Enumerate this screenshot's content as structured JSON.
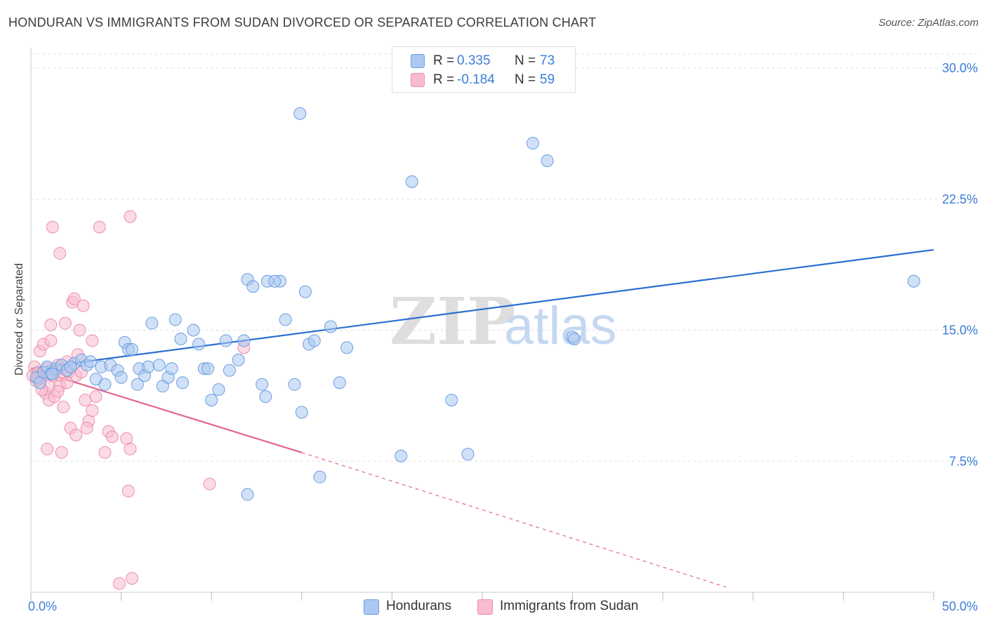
{
  "title": "HONDURAN VS IMMIGRANTS FROM SUDAN DIVORCED OR SEPARATED CORRELATION CHART",
  "source": "Source: ZipAtlas.com",
  "watermark": {
    "zip": "ZIP",
    "atlas": "atlas"
  },
  "colors": {
    "blue_fill": "#aac8f0",
    "blue_stroke": "#6b9de0",
    "blue_line": "#2b6fd0",
    "pink_fill": "#f7bccd",
    "pink_stroke": "#ec8fab",
    "pink_line": "#e2658e",
    "tick_text": "#3b7dd8",
    "grid": "#e0e0e0"
  },
  "legend_top": {
    "rows": [
      {
        "r_label": "R =",
        "r_value": "0.335",
        "n_label": "N =",
        "n_value": "73"
      },
      {
        "r_label": "R =",
        "r_value": "-0.184",
        "n_label": "N =",
        "n_value": "59"
      }
    ]
  },
  "legend_bottom": {
    "items": [
      "Hondurans",
      "Immigrants from Sudan"
    ]
  },
  "chart_data": {
    "type": "scatter",
    "title": "HONDURAN VS IMMIGRANTS FROM SUDAN DIVORCED OR SEPARATED CORRELATION CHART",
    "xlabel": "",
    "ylabel": "Divorced or Separated",
    "xlim": [
      0,
      50
    ],
    "ylim": [
      0,
      31
    ],
    "x_tick_labels": [
      {
        "value": 0,
        "label": "0.0%"
      },
      {
        "value": 50,
        "label": "50.0%"
      }
    ],
    "y_tick_labels": [
      {
        "value": 7.5,
        "label": "7.5%"
      },
      {
        "value": 15.0,
        "label": "15.0%"
      },
      {
        "value": 22.5,
        "label": "22.5%"
      },
      {
        "value": 30.0,
        "label": "30.0%"
      }
    ],
    "series": [
      {
        "name": "Hondurans",
        "r": 0.335,
        "n": 73,
        "trend": {
          "x": [
            0,
            50
          ],
          "y": [
            12.8,
            19.6
          ],
          "dashed_extension": false
        },
        "points": [
          [
            0.3,
            12.3
          ],
          [
            0.5,
            12.0
          ],
          [
            0.7,
            12.6
          ],
          [
            0.9,
            12.9
          ],
          [
            1.1,
            12.5
          ],
          [
            1.4,
            12.8
          ],
          [
            1.7,
            13.0
          ],
          [
            2.0,
            12.7
          ],
          [
            2.4,
            13.1
          ],
          [
            2.8,
            13.3
          ],
          [
            3.1,
            13.0
          ],
          [
            3.3,
            13.2
          ],
          [
            3.6,
            12.2
          ],
          [
            3.9,
            12.9
          ],
          [
            4.1,
            11.9
          ],
          [
            4.4,
            13.0
          ],
          [
            4.8,
            12.7
          ],
          [
            5.0,
            12.3
          ],
          [
            5.2,
            14.3
          ],
          [
            5.4,
            13.9
          ],
          [
            5.6,
            13.9
          ],
          [
            5.9,
            11.9
          ],
          [
            6.0,
            12.8
          ],
          [
            6.3,
            12.4
          ],
          [
            6.5,
            12.9
          ],
          [
            6.7,
            15.4
          ],
          [
            7.1,
            13.0
          ],
          [
            7.3,
            11.8
          ],
          [
            7.6,
            12.3
          ],
          [
            7.8,
            12.8
          ],
          [
            8.0,
            15.6
          ],
          [
            8.3,
            14.5
          ],
          [
            8.4,
            12.0
          ],
          [
            9.0,
            15.0
          ],
          [
            9.3,
            14.2
          ],
          [
            9.6,
            12.8
          ],
          [
            9.8,
            12.8
          ],
          [
            10.0,
            11.0
          ],
          [
            10.4,
            11.6
          ],
          [
            10.8,
            14.4
          ],
          [
            11.0,
            12.7
          ],
          [
            11.5,
            13.3
          ],
          [
            11.8,
            14.4
          ],
          [
            12.0,
            17.9
          ],
          [
            12.3,
            17.5
          ],
          [
            12.8,
            11.9
          ],
          [
            13.0,
            11.2
          ],
          [
            13.1,
            17.8
          ],
          [
            13.8,
            17.8
          ],
          [
            14.1,
            15.6
          ],
          [
            14.6,
            11.9
          ],
          [
            15.0,
            10.3
          ],
          [
            15.2,
            17.2
          ],
          [
            15.4,
            14.2
          ],
          [
            15.7,
            14.4
          ],
          [
            16.0,
            6.6
          ],
          [
            16.6,
            15.2
          ],
          [
            17.1,
            12.0
          ],
          [
            17.5,
            14.0
          ],
          [
            13.5,
            17.8
          ],
          [
            14.9,
            27.4
          ],
          [
            20.5,
            7.8
          ],
          [
            21.1,
            23.5
          ],
          [
            23.3,
            11.0
          ],
          [
            24.2,
            7.9
          ],
          [
            27.8,
            25.7
          ],
          [
            28.6,
            24.7
          ],
          [
            30.0,
            14.6
          ],
          [
            30.1,
            14.5
          ],
          [
            48.9,
            17.8
          ],
          [
            12.0,
            5.6
          ],
          [
            1.2,
            12.5
          ],
          [
            2.2,
            12.9
          ]
        ]
      },
      {
        "name": "Immigrants from Sudan",
        "r": -0.184,
        "n": 59,
        "trend": {
          "x": [
            0,
            15
          ],
          "y": [
            12.8,
            8.0
          ],
          "dashed_to": {
            "x": 38.5,
            "y": 0.3
          }
        },
        "points": [
          [
            0.1,
            12.4
          ],
          [
            0.2,
            12.9
          ],
          [
            0.3,
            12.1
          ],
          [
            0.4,
            12.6
          ],
          [
            0.5,
            13.8
          ],
          [
            0.6,
            12.4
          ],
          [
            0.7,
            14.2
          ],
          [
            0.8,
            11.4
          ],
          [
            0.9,
            12.8
          ],
          [
            1.0,
            11.0
          ],
          [
            1.1,
            14.4
          ],
          [
            1.1,
            15.3
          ],
          [
            1.2,
            12.4
          ],
          [
            1.3,
            11.2
          ],
          [
            1.4,
            12.6
          ],
          [
            1.5,
            13.0
          ],
          [
            1.6,
            11.8
          ],
          [
            1.7,
            12.4
          ],
          [
            1.8,
            10.6
          ],
          [
            1.9,
            15.4
          ],
          [
            2.0,
            13.2
          ],
          [
            2.1,
            12.6
          ],
          [
            2.2,
            9.4
          ],
          [
            2.3,
            16.6
          ],
          [
            2.4,
            16.8
          ],
          [
            2.5,
            12.4
          ],
          [
            2.6,
            13.6
          ],
          [
            2.7,
            15.0
          ],
          [
            2.9,
            16.4
          ],
          [
            3.0,
            11.0
          ],
          [
            3.2,
            9.8
          ],
          [
            3.4,
            14.4
          ],
          [
            3.4,
            10.4
          ],
          [
            3.6,
            11.2
          ],
          [
            3.8,
            20.9
          ],
          [
            4.1,
            8.0
          ],
          [
            4.3,
            9.2
          ],
          [
            4.5,
            8.9
          ],
          [
            1.2,
            20.9
          ],
          [
            1.6,
            19.4
          ],
          [
            5.3,
            8.8
          ],
          [
            5.4,
            5.8
          ],
          [
            5.5,
            8.2
          ],
          [
            5.6,
            0.8
          ],
          [
            5.5,
            21.5
          ],
          [
            9.9,
            6.2
          ],
          [
            11.8,
            14.0
          ],
          [
            2.0,
            12.0
          ],
          [
            2.8,
            12.6
          ],
          [
            1.0,
            11.8
          ],
          [
            0.4,
            12.2
          ],
          [
            1.5,
            11.5
          ],
          [
            3.1,
            9.4
          ],
          [
            2.5,
            9.0
          ],
          [
            0.9,
            8.2
          ],
          [
            1.7,
            8.0
          ],
          [
            4.9,
            0.5
          ],
          [
            2.2,
            12.9
          ],
          [
            0.6,
            11.6
          ]
        ]
      }
    ]
  }
}
